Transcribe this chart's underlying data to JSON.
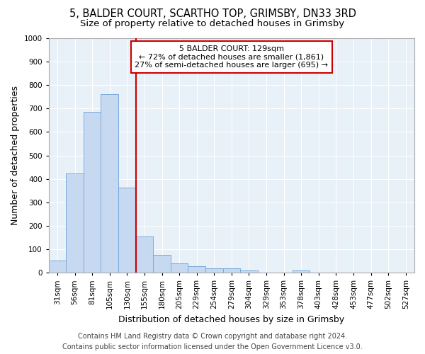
{
  "title1": "5, BALDER COURT, SCARTHO TOP, GRIMSBY, DN33 3RD",
  "title2": "Size of property relative to detached houses in Grimsby",
  "xlabel": "Distribution of detached houses by size in Grimsby",
  "ylabel": "Number of detached properties",
  "categories": [
    "31sqm",
    "56sqm",
    "81sqm",
    "105sqm",
    "130sqm",
    "155sqm",
    "180sqm",
    "205sqm",
    "229sqm",
    "254sqm",
    "279sqm",
    "304sqm",
    "329sqm",
    "353sqm",
    "378sqm",
    "403sqm",
    "428sqm",
    "453sqm",
    "477sqm",
    "502sqm",
    "527sqm"
  ],
  "values": [
    52,
    422,
    685,
    760,
    362,
    155,
    75,
    40,
    28,
    17,
    17,
    10,
    0,
    0,
    8,
    0,
    0,
    0,
    0,
    0,
    0
  ],
  "bar_color": "#c6d9f0",
  "bar_edge_color": "#7aaadc",
  "vline_color": "#cc0000",
  "vline_x_index": 4,
  "annotation_text": "5 BALDER COURT: 129sqm\n← 72% of detached houses are smaller (1,861)\n27% of semi-detached houses are larger (695) →",
  "annotation_box_color": "#ffffff",
  "annotation_box_edge": "#cc0000",
  "ylim": [
    0,
    1000
  ],
  "yticks": [
    0,
    100,
    200,
    300,
    400,
    500,
    600,
    700,
    800,
    900,
    1000
  ],
  "plot_bg_color": "#e8f0f8",
  "background_color": "#ffffff",
  "grid_color": "#ffffff",
  "footer1": "Contains HM Land Registry data © Crown copyright and database right 2024.",
  "footer2": "Contains public sector information licensed under the Open Government Licence v3.0.",
  "title_fontsize": 10.5,
  "subtitle_fontsize": 9.5,
  "axis_label_fontsize": 9,
  "tick_fontsize": 7.5,
  "annotation_fontsize": 8,
  "footer_fontsize": 7
}
